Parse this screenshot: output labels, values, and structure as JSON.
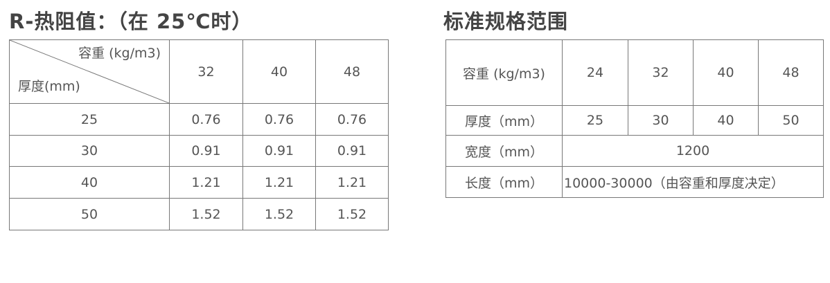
{
  "left": {
    "title": "R-热阻值：（在 25℃时）",
    "corner_top": "容重 (kg/m3)",
    "corner_bottom": "厚度(mm)",
    "densities": [
      "32",
      "40",
      "48"
    ],
    "rows": [
      {
        "thickness": "25",
        "values": [
          "0.76",
          "0.76",
          "0.76"
        ]
      },
      {
        "thickness": "30",
        "values": [
          "0.91",
          "0.91",
          "0.91"
        ]
      },
      {
        "thickness": "40",
        "values": [
          "1.21",
          "1.21",
          "1.21"
        ]
      },
      {
        "thickness": "50",
        "values": [
          "1.52",
          "1.52",
          "1.52"
        ]
      }
    ]
  },
  "right": {
    "title": "标准规格范围",
    "density_label": "容重 (kg/m3)",
    "densities": [
      "24",
      "32",
      "40",
      "48"
    ],
    "thickness_label": "厚度（mm）",
    "thicknesses": [
      "25",
      "30",
      "40",
      "50"
    ],
    "width_label": "宽度（mm）",
    "width_value": "1200",
    "length_label": "长度（mm）",
    "length_value": "10000-30000（由容重和厚度决定）"
  }
}
